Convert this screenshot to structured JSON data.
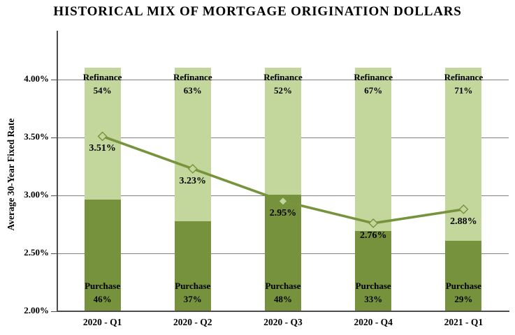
{
  "title": "HISTORICAL MIX OF MORTGAGE ORIGINATION DOLLARS",
  "chart_data": {
    "type": "bar",
    "subtype": "100-percent-stacked-bars-with-line-overlay",
    "categories": [
      "2020 - Q1",
      "2020 - Q2",
      "2020 - Q3",
      "2020 - Q4",
      "2021 - Q1"
    ],
    "series": [
      {
        "name": "Purchase",
        "type": "bar",
        "stack_position": "bottom",
        "values": [
          46,
          37,
          48,
          33,
          29
        ],
        "unit": "%",
        "color": "#76923C"
      },
      {
        "name": "Refinance",
        "type": "bar",
        "stack_position": "top",
        "values": [
          54,
          63,
          52,
          67,
          71
        ],
        "unit": "%",
        "color": "#C3D69B"
      },
      {
        "name": "Average 30-Year Fixed Rate",
        "type": "line",
        "values": [
          3.51,
          3.23,
          2.95,
          2.76,
          2.88
        ],
        "unit": "%",
        "color": "#77933C",
        "marker": "diamond",
        "marker_fill": "#C3D69B"
      }
    ],
    "xlabel": "",
    "ylabel": "Average 30-Year Fixed Rate",
    "y_axis": {
      "min": 2.0,
      "max": 4.1,
      "tick_labels": [
        "4.00%",
        "3.50%",
        "3.00%",
        "2.50%",
        "2.00%"
      ],
      "tick_values": [
        4.0,
        3.5,
        3.0,
        2.5,
        2.0
      ]
    },
    "grid": "horizontal",
    "legend_position": "none",
    "colors": {
      "grid": "#828282",
      "axis": "#4D4D4D",
      "text": "#000000"
    }
  }
}
